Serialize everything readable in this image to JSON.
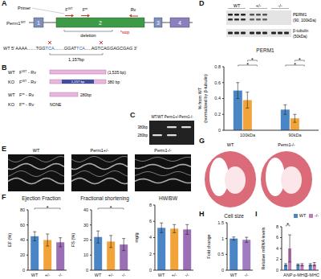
{
  "panel_labels": [
    "A",
    "B",
    "C",
    "D",
    "E",
    "F",
    "G",
    "H",
    "I"
  ],
  "gene_diagram": {
    "gene": {
      "base": "Perm1",
      "sup": "WT"
    },
    "exons": [
      "1",
      "2",
      "3",
      "4"
    ],
    "primer": "Primer",
    "forward_primers": [
      {
        "base": "F",
        "sup": "WT"
      },
      {
        "base": "F",
        "sup": "m"
      }
    ],
    "reverse_primer": "Rv",
    "stop": "*stop",
    "deletion": "deletion",
    "sequence": [
      "WT 5' AAAA.......TGG",
      "TCA",
      "........GGAT",
      "TCA",
      ".....AGTCAGGAGCGAG 3'"
    ],
    "deletion_size": "1,157bp"
  },
  "pcr": {
    "rows": [
      {
        "genotype": "WT",
        "primer": {
          "base": "F",
          "sup": "WT",
          "rest": " - Rv"
        },
        "product": "(1,535 bp)"
      },
      {
        "genotype": "KO",
        "primer": {
          "base": "F",
          "sup": "WT",
          "rest": " - Rv"
        },
        "deleted": "1,157 bp",
        "product": "380 bp"
      },
      {
        "genotype": "WT",
        "primer": {
          "base": "F",
          "sup": "m",
          "rest": " - Rv"
        },
        "product": "280bp"
      },
      {
        "genotype": "KO",
        "primer": {
          "base": "F",
          "sup": "m",
          "rest": " - Rv"
        },
        "product": "NONE"
      }
    ]
  },
  "gel": {
    "lanes": [
      "WT/WT",
      "Perm1+/-",
      "Perm1-/-"
    ],
    "bands": [
      "380bp",
      "280bp"
    ],
    "present": [
      [
        false,
        true
      ],
      [
        true,
        true
      ],
      [
        true,
        false
      ]
    ]
  },
  "blot": {
    "groups": [
      "WT",
      "+/-",
      "-/-"
    ],
    "proteins": [
      {
        "name": "PERM1",
        "detail": "(90, 100kDa)"
      },
      {
        "name": "β-tubulin",
        "detail": "(50kDa)"
      }
    ]
  },
  "echo": {
    "labels": [
      "WT",
      "Perm1+/-",
      "Perm1-/-"
    ]
  },
  "histology": {
    "labels": [
      "WT",
      "Perm1-/-"
    ]
  },
  "chart_data": [
    {
      "type": "bar",
      "title": "PERM1",
      "ylabel": "% from WT\n(normalized by β-tubulin)",
      "categories": [
        "100kDa",
        "90kDa"
      ],
      "series": [
        {
          "name": "WT",
          "color": "#4a86c5",
          "values": [
            0.5,
            0.26
          ],
          "errors": [
            0.1,
            0.06
          ]
        },
        {
          "name": "+/-",
          "color": "#f2a33a",
          "values": [
            0.38,
            0.15
          ],
          "errors": [
            0.1,
            0.05
          ]
        },
        {
          "name": "-/-",
          "color": "#9b6fb5",
          "values": [
            0,
            0
          ],
          "errors": [
            0,
            0
          ]
        }
      ],
      "ylim": [
        0,
        0.8
      ],
      "yticks": [
        0,
        0.2,
        0.4,
        0.6,
        0.8
      ],
      "annotations": [
        {
          "category": "100kDa",
          "between": [
            "WT",
            "-/-"
          ],
          "text": "*"
        },
        {
          "category": "100kDa",
          "between": [
            "+/-",
            "-/-"
          ],
          "text": "*"
        },
        {
          "category": "90kDa",
          "between": [
            "WT",
            "-/-"
          ],
          "text": "*"
        },
        {
          "category": "90kDa",
          "between": [
            "+/-",
            "-/-"
          ],
          "text": "*"
        }
      ]
    },
    {
      "type": "bar",
      "title": "Ejection Fraction",
      "ylabel": "EF (%)",
      "categories": [
        "WT",
        "+/-",
        "-/-"
      ],
      "values": [
        45,
        40,
        37
      ],
      "errors": [
        6,
        8,
        6
      ],
      "colors": [
        "#4a86c5",
        "#f2a33a",
        "#9b6fb5"
      ],
      "ylim": [
        0,
        80
      ],
      "yticks": [
        0,
        20,
        40,
        60,
        80
      ],
      "annotations": [
        {
          "between": [
            "WT",
            "-/-"
          ],
          "text": "*"
        }
      ]
    },
    {
      "type": "bar",
      "title": "Fractional shortening",
      "ylabel": "FS (%)",
      "categories": [
        "WT",
        "+/-",
        "-/-"
      ],
      "values": [
        22,
        19,
        17
      ],
      "errors": [
        4,
        4,
        4
      ],
      "colors": [
        "#4a86c5",
        "#f2a33a",
        "#9b6fb5"
      ],
      "ylim": [
        0,
        40
      ],
      "yticks": [
        0,
        10,
        20,
        30,
        40
      ],
      "annotations": [
        {
          "between": [
            "WT",
            "-/-"
          ],
          "text": "*"
        }
      ]
    },
    {
      "type": "bar",
      "title": "HW/BW",
      "ylabel": "mg/g",
      "categories": [
        "WT",
        "+/-",
        "-/-"
      ],
      "values": [
        5.2,
        5.1,
        5.0
      ],
      "errors": [
        0.6,
        0.5,
        0.6
      ],
      "colors": [
        "#4a86c5",
        "#f2a33a",
        "#9b6fb5"
      ],
      "ylim": [
        0,
        8
      ],
      "yticks": [
        0,
        2,
        4,
        6,
        8
      ]
    },
    {
      "type": "bar",
      "title": "Cell size",
      "ylabel": "Fold change",
      "categories": [
        "WT",
        "-/-"
      ],
      "values": [
        1,
        0.96
      ],
      "errors": [
        0.05,
        0.08
      ],
      "colors": [
        "#4a86c5",
        "#a07cc0"
      ],
      "ylim": [
        0,
        1.5
      ],
      "yticks": [
        0,
        0.5,
        1,
        1.5
      ]
    },
    {
      "type": "bar",
      "ylabel": "Relative mRNA levels",
      "categories": [
        "ANP",
        "α-MHC",
        "β-MHC"
      ],
      "series": [
        {
          "name": "WT",
          "color": "#4a86c5",
          "values": [
            1,
            1,
            1
          ],
          "errors": [
            0.2,
            0.15,
            0.2
          ]
        },
        {
          "name": "-/-",
          "color": "#c07ab8",
          "values": [
            4,
            1,
            1.1
          ],
          "errors": [
            2.5,
            0.2,
            0.3
          ]
        }
      ],
      "legend": "top right",
      "ylim": [
        0,
        8
      ],
      "yticks": [
        0,
        2,
        4,
        6,
        8
      ],
      "annotations": [
        {
          "category": "ANP",
          "between": [
            "WT",
            "-/-"
          ],
          "text": "*"
        }
      ]
    }
  ]
}
